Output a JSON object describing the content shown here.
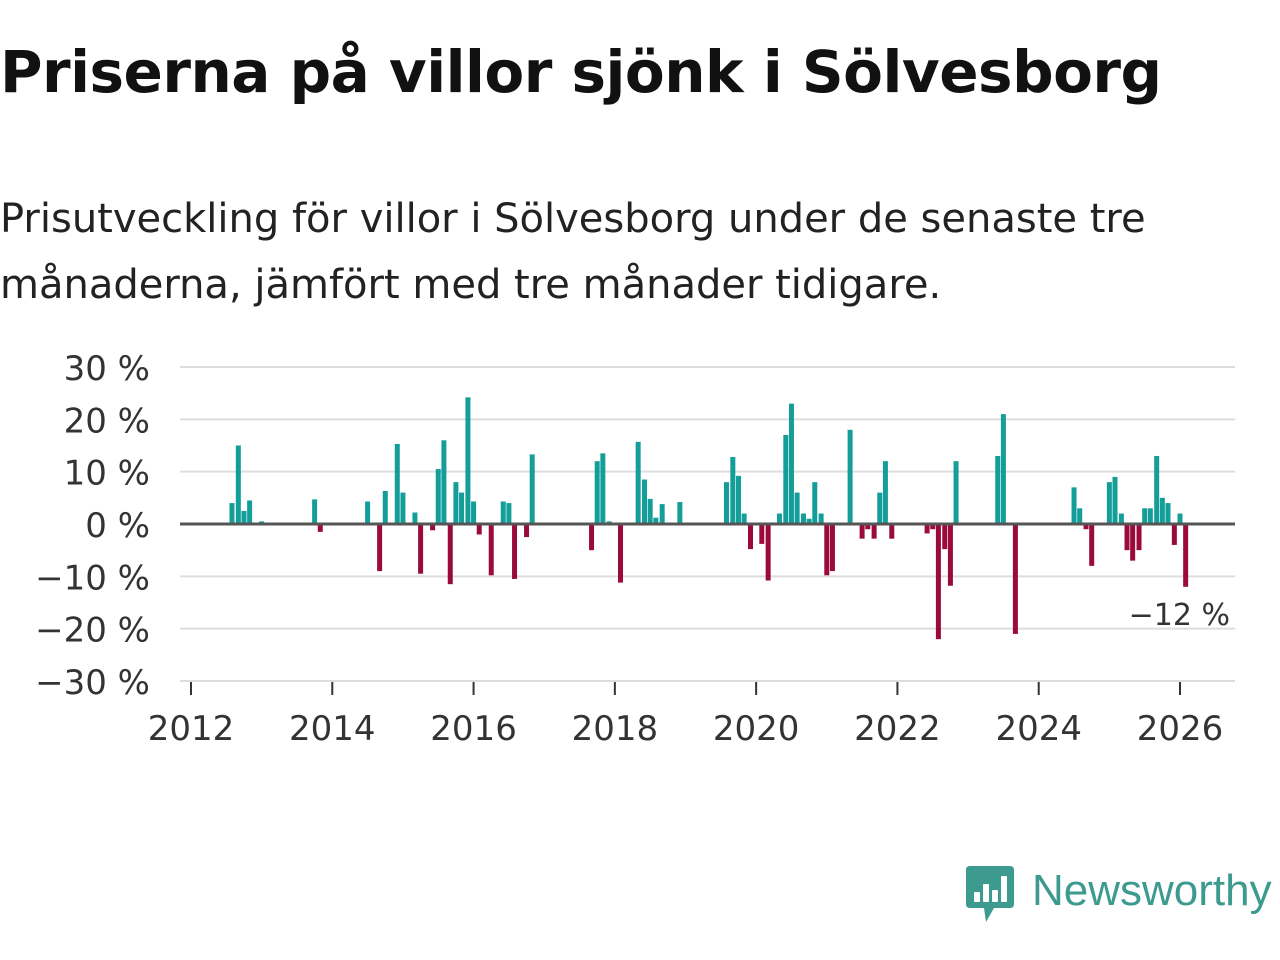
{
  "title": "Priserna på villor sjönk i Sölvesborg",
  "subtitle": "Prisutveckling för villor i Sölvesborg under de senaste tre månaderna, jämfört med tre månader tidigare.",
  "brand": "Newsworthy",
  "colors": {
    "positive": "#139E99",
    "negative": "#9A0A3C",
    "grid": "#DDDDDD",
    "zero": "#555555",
    "brand": "#3D9A8F"
  },
  "chart_data": {
    "type": "bar",
    "ylim": [
      -30,
      30
    ],
    "yticks": [
      30,
      20,
      10,
      0,
      -10,
      -20,
      -30
    ],
    "ytick_labels": [
      "30 %",
      "20 %",
      "10 %",
      "0 %",
      "−10 %",
      "−20 %",
      "−30 %"
    ],
    "xlim": [
      2012,
      2026.8
    ],
    "xticks": [
      2012,
      2014,
      2016,
      2018,
      2020,
      2022,
      2024,
      2026
    ],
    "xtick_labels": [
      "2012",
      "2014",
      "2016",
      "2018",
      "2020",
      "2022",
      "2024",
      "2026"
    ],
    "bar_width": 0.0833,
    "annotation": {
      "text": "−12 %",
      "x": 2026.08,
      "value": -12
    },
    "points": [
      {
        "x": 2012.58,
        "value": 4
      },
      {
        "x": 2012.67,
        "value": 15
      },
      {
        "x": 2012.75,
        "value": 2.5
      },
      {
        "x": 2012.83,
        "value": 4.5
      },
      {
        "x": 2013.0,
        "value": 0.5
      },
      {
        "x": 2013.75,
        "value": 4.7
      },
      {
        "x": 2013.83,
        "value": -1.5
      },
      {
        "x": 2014.5,
        "value": 4.3
      },
      {
        "x": 2014.67,
        "value": -9
      },
      {
        "x": 2014.75,
        "value": 6.3
      },
      {
        "x": 2014.92,
        "value": 15.3
      },
      {
        "x": 2015.0,
        "value": 6
      },
      {
        "x": 2015.17,
        "value": 2.2
      },
      {
        "x": 2015.25,
        "value": -9.5
      },
      {
        "x": 2015.42,
        "value": -1.2
      },
      {
        "x": 2015.5,
        "value": 10.5
      },
      {
        "x": 2015.58,
        "value": 16
      },
      {
        "x": 2015.67,
        "value": -11.5
      },
      {
        "x": 2015.75,
        "value": 8
      },
      {
        "x": 2015.83,
        "value": 6
      },
      {
        "x": 2015.92,
        "value": 24.2
      },
      {
        "x": 2016.0,
        "value": 4.3
      },
      {
        "x": 2016.08,
        "value": -2
      },
      {
        "x": 2016.25,
        "value": -9.8
      },
      {
        "x": 2016.42,
        "value": 4.3
      },
      {
        "x": 2016.5,
        "value": 4
      },
      {
        "x": 2016.58,
        "value": -10.5
      },
      {
        "x": 2016.75,
        "value": -2.5
      },
      {
        "x": 2016.83,
        "value": 13.3
      },
      {
        "x": 2017.67,
        "value": -5
      },
      {
        "x": 2017.75,
        "value": 12
      },
      {
        "x": 2017.83,
        "value": 13.5
      },
      {
        "x": 2017.92,
        "value": 0.5
      },
      {
        "x": 2018.08,
        "value": -11.2
      },
      {
        "x": 2018.33,
        "value": 15.7
      },
      {
        "x": 2018.42,
        "value": 8.5
      },
      {
        "x": 2018.5,
        "value": 4.8
      },
      {
        "x": 2018.58,
        "value": 1.2
      },
      {
        "x": 2018.67,
        "value": 3.8
      },
      {
        "x": 2018.92,
        "value": 4.2
      },
      {
        "x": 2019.58,
        "value": 8
      },
      {
        "x": 2019.67,
        "value": 12.8
      },
      {
        "x": 2019.75,
        "value": 9.2
      },
      {
        "x": 2019.83,
        "value": 2
      },
      {
        "x": 2019.92,
        "value": -4.8
      },
      {
        "x": 2020.08,
        "value": -3.8
      },
      {
        "x": 2020.17,
        "value": -10.8
      },
      {
        "x": 2020.25,
        "value": 0.3
      },
      {
        "x": 2020.33,
        "value": 2
      },
      {
        "x": 2020.42,
        "value": 17
      },
      {
        "x": 2020.5,
        "value": 23
      },
      {
        "x": 2020.58,
        "value": 6
      },
      {
        "x": 2020.67,
        "value": 2
      },
      {
        "x": 2020.75,
        "value": 1
      },
      {
        "x": 2020.83,
        "value": 8
      },
      {
        "x": 2020.92,
        "value": 2
      },
      {
        "x": 2021.0,
        "value": -9.8
      },
      {
        "x": 2021.08,
        "value": -9
      },
      {
        "x": 2021.33,
        "value": 18
      },
      {
        "x": 2021.5,
        "value": -2.8
      },
      {
        "x": 2021.58,
        "value": -1
      },
      {
        "x": 2021.67,
        "value": -2.8
      },
      {
        "x": 2021.75,
        "value": 6
      },
      {
        "x": 2021.83,
        "value": 12
      },
      {
        "x": 2021.92,
        "value": -2.8
      },
      {
        "x": 2022.42,
        "value": -1.8
      },
      {
        "x": 2022.5,
        "value": -1
      },
      {
        "x": 2022.58,
        "value": -22
      },
      {
        "x": 2022.67,
        "value": -4.8
      },
      {
        "x": 2022.75,
        "value": -11.8
      },
      {
        "x": 2022.83,
        "value": 12
      },
      {
        "x": 2023.42,
        "value": 13
      },
      {
        "x": 2023.5,
        "value": 21
      },
      {
        "x": 2023.67,
        "value": -21
      },
      {
        "x": 2024.5,
        "value": 7
      },
      {
        "x": 2024.58,
        "value": 3
      },
      {
        "x": 2024.67,
        "value": -1
      },
      {
        "x": 2024.75,
        "value": -8
      },
      {
        "x": 2025.0,
        "value": 8
      },
      {
        "x": 2025.08,
        "value": 9
      },
      {
        "x": 2025.17,
        "value": 2
      },
      {
        "x": 2025.25,
        "value": -5
      },
      {
        "x": 2025.33,
        "value": -7
      },
      {
        "x": 2025.42,
        "value": -5
      },
      {
        "x": 2025.5,
        "value": 3
      },
      {
        "x": 2025.58,
        "value": 3
      },
      {
        "x": 2025.67,
        "value": 13
      },
      {
        "x": 2025.75,
        "value": 5
      },
      {
        "x": 2025.83,
        "value": 4
      },
      {
        "x": 2025.92,
        "value": -4
      },
      {
        "x": 2026.0,
        "value": 2
      },
      {
        "x": 2026.08,
        "value": -12
      }
    ]
  }
}
